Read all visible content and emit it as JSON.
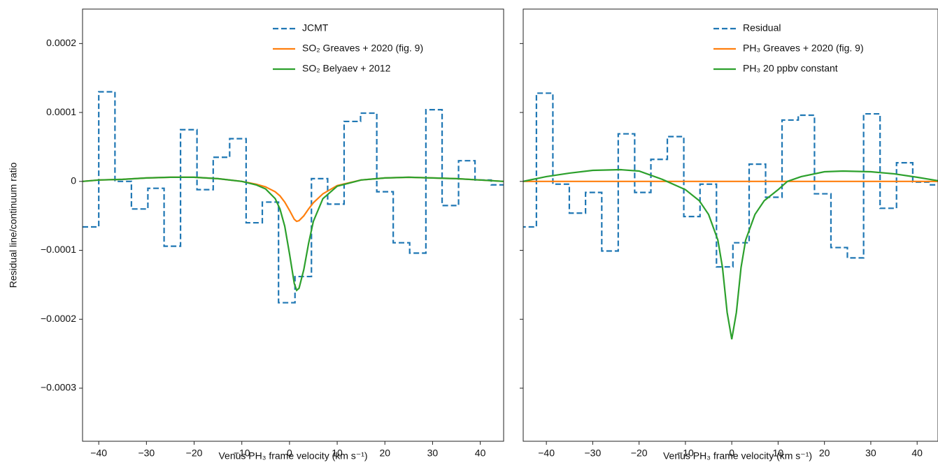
{
  "chart_data": [
    {
      "type": "line",
      "xlabel": "Venus PH₃ frame velocity (km s⁻¹)",
      "ylabel": "Residual line/continuum ratio",
      "xlim": [
        -43.4,
        44.9
      ],
      "ylim": [
        -0.000377,
        0.00025
      ],
      "xticks": [
        {
          "value": -40,
          "label": "−40"
        },
        {
          "value": -30,
          "label": "−30"
        },
        {
          "value": -20,
          "label": "−20"
        },
        {
          "value": -10,
          "label": "−10"
        },
        0,
        10,
        20,
        30,
        40
      ],
      "yticks": [
        {
          "value": -0.0003,
          "label": "−0.0003"
        },
        {
          "value": -0.0002,
          "label": "−0.0002"
        },
        {
          "value": -0.0001,
          "label": "−0.0001"
        },
        0,
        0.0001,
        0.0002
      ],
      "legend": "upper center",
      "series": [
        {
          "name": "JCMT",
          "color": "#1f77b4",
          "linestyle": "dashed",
          "drawstyle": "steps-mid",
          "x": [
            -41.7,
            -38.3,
            -34.9,
            -31.4,
            -28.0,
            -24.6,
            -21.1,
            -17.7,
            -14.3,
            -10.8,
            -7.4,
            -4.0,
            -0.6,
            2.9,
            6.3,
            9.7,
            13.2,
            16.6,
            20.0,
            23.5,
            26.9,
            30.3,
            33.7,
            37.2,
            40.6,
            44.0
          ],
          "values": [
            -6.6e-05,
            0.00013,
            0.0,
            -4e-05,
            -1e-05,
            -9.4e-05,
            7.5e-05,
            -1.2e-05,
            3.5e-05,
            6.2e-05,
            -6e-05,
            -3e-05,
            -0.000176,
            -0.000138,
            4e-06,
            -3.3e-05,
            8.7e-05,
            9.9e-05,
            -1.5e-05,
            -8.9e-05,
            -0.000104,
            0.000104,
            -3.5e-05,
            3e-05,
            2e-06,
            -5e-06
          ]
        },
        {
          "name": "SO₂ Greaves + 2020 (fig. 9)",
          "color": "#ff7f0e",
          "linestyle": "solid",
          "drawstyle": "default",
          "x": [
            -43.4,
            -40,
            -35,
            -30,
            -25,
            -20,
            -15,
            -10,
            -7,
            -5,
            -3,
            -2,
            -1,
            0,
            1,
            1.5,
            2,
            3,
            4,
            5,
            7,
            10,
            15,
            20,
            25,
            30,
            35,
            40,
            44.9
          ],
          "values": [
            0,
            2e-06,
            3e-06,
            5e-06,
            6e-06,
            6e-06,
            4e-06,
            0,
            -4e-06,
            -8e-06,
            -1.5e-05,
            -2.1e-05,
            -3e-05,
            -4.2e-05,
            -5.5e-05,
            -5.8e-05,
            -5.7e-05,
            -5e-05,
            -4e-05,
            -3.1e-05,
            -1.8e-05,
            -6e-06,
            2e-06,
            5e-06,
            6e-06,
            5e-06,
            4e-06,
            2e-06,
            0
          ]
        },
        {
          "name": "SO₂ Belyaev + 2012",
          "color": "#2ca02c",
          "linestyle": "solid",
          "drawstyle": "default",
          "x": [
            -43.4,
            -40,
            -35,
            -30,
            -25,
            -20,
            -15,
            -10,
            -7,
            -5,
            -3,
            -2,
            -1,
            0,
            1,
            1.5,
            2,
            3,
            4,
            5,
            7,
            10,
            15,
            20,
            25,
            30,
            35,
            40,
            44.9
          ],
          "values": [
            0,
            2e-06,
            3e-06,
            5e-06,
            6e-06,
            6e-06,
            4e-06,
            0,
            -5e-06,
            -1.1e-05,
            -2.5e-05,
            -4e-05,
            -6.5e-05,
            -0.000105,
            -0.000148,
            -0.000158,
            -0.000155,
            -0.000128,
            -9e-05,
            -5.8e-05,
            -2.5e-05,
            -7e-06,
            2e-06,
            5e-06,
            6e-06,
            5e-06,
            4e-06,
            2e-06,
            0
          ]
        }
      ]
    },
    {
      "type": "line",
      "xlabel": "Venus PH₃ frame velocity (km s⁻¹)",
      "xlim": [
        -45,
        44.5
      ],
      "ylim": [
        -0.000377,
        0.00025
      ],
      "xticks": [
        {
          "value": -40,
          "label": "−40"
        },
        {
          "value": -30,
          "label": "−30"
        },
        {
          "value": -20,
          "label": "−20"
        },
        {
          "value": -10,
          "label": "−10"
        },
        0,
        10,
        20,
        30,
        40
      ],
      "yticks": [
        -0.0003,
        -0.0002,
        -0.0001,
        0,
        0.0001,
        0.0002
      ],
      "ytick_labels": false,
      "legend": "upper center",
      "series": [
        {
          "name": "Residual",
          "color": "#1f77b4",
          "linestyle": "dashed",
          "drawstyle": "steps-mid",
          "x": [
            -43.9,
            -40.4,
            -36.8,
            -33.3,
            -29.8,
            -26.3,
            -22.7,
            -19.2,
            -15.7,
            -12.1,
            -8.6,
            -5.1,
            -1.5,
            2.0,
            5.5,
            9.1,
            12.6,
            16.1,
            19.6,
            23.2,
            26.7,
            30.2,
            33.8,
            37.3,
            40.8,
            44.4
          ],
          "values": [
            -6.6e-05,
            0.000128,
            -4e-06,
            -4.6e-05,
            -1.6e-05,
            -0.000101,
            6.9e-05,
            -1.6e-05,
            3.2e-05,
            6.5e-05,
            -5.1e-05,
            -4e-06,
            -0.000124,
            -8.9e-05,
            2.5e-05,
            -2.3e-05,
            8.9e-05,
            9.6e-05,
            -1.8e-05,
            -9.6e-05,
            -0.000111,
            9.8e-05,
            -3.9e-05,
            2.7e-05,
            -1e-06,
            -5e-06
          ]
        },
        {
          "name": "PH₃ Greaves + 2020 (fig. 9)",
          "color": "#ff7f0e",
          "linestyle": "solid",
          "drawstyle": "default",
          "x": [
            -45,
            44.5
          ],
          "values": [
            0,
            0
          ]
        },
        {
          "name": "PH₃ 20 ppbv constant",
          "color": "#2ca02c",
          "linestyle": "solid",
          "drawstyle": "default",
          "x": [
            -45,
            -40,
            -35,
            -30,
            -24,
            -20,
            -15,
            -14,
            -10,
            -7,
            -5,
            -3,
            -2,
            -1,
            0,
            1,
            2,
            3,
            5,
            7,
            10,
            12,
            15,
            20,
            24,
            30,
            35,
            40,
            44.5
          ],
          "values": [
            0,
            7e-06,
            1.2e-05,
            1.6e-05,
            1.7e-05,
            1.5e-05,
            3e-06,
            0,
            -1.2e-05,
            -2.8e-05,
            -4.8e-05,
            -8.5e-05,
            -0.000125,
            -0.00019,
            -0.000229,
            -0.00019,
            -0.000125,
            -8.5e-05,
            -4.8e-05,
            -2.8e-05,
            -1.2e-05,
            0,
            7e-06,
            1.4e-05,
            1.5e-05,
            1.4e-05,
            1.1e-05,
            6e-06,
            1e-06
          ]
        }
      ]
    }
  ]
}
